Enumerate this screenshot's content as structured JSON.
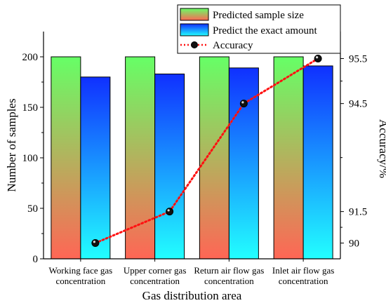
{
  "chart_data": {
    "type": "bar",
    "categories": [
      [
        "Working face gas",
        "concentration"
      ],
      [
        "Upper corner gas",
        "concentration"
      ],
      [
        "Return air flow gas",
        "concentration"
      ],
      [
        "Inlet air flow gas",
        "concentration"
      ]
    ],
    "series": [
      {
        "name": "Predicted sample size",
        "type": "bar",
        "values": [
          200,
          200,
          200,
          200
        ],
        "colors": [
          "#66ff66",
          "#ff6655"
        ]
      },
      {
        "name": "Predict the exact amount",
        "type": "bar",
        "values": [
          180,
          183,
          189,
          191
        ],
        "colors": [
          "#1030ff",
          "#22ffff"
        ]
      },
      {
        "name": "Accuracy",
        "type": "line",
        "axis": "right",
        "values": [
          90,
          91.5,
          94.5,
          95.5
        ],
        "color": "#ff1111",
        "marker_color": "#111111"
      }
    ],
    "xlabel": "Gas distribution area",
    "ylabel": "Number of samples",
    "y2label": "Accuracy/%",
    "ylim": [
      0,
      225
    ],
    "yticks": [
      0,
      50,
      100,
      150,
      200
    ],
    "y2ticks": [
      90,
      91.5,
      94.5,
      95.5
    ],
    "y2ticks_display": [
      "90",
      "91.5",
      "94.5",
      "95.5"
    ],
    "legend_placement": "top-right",
    "grid": false
  }
}
